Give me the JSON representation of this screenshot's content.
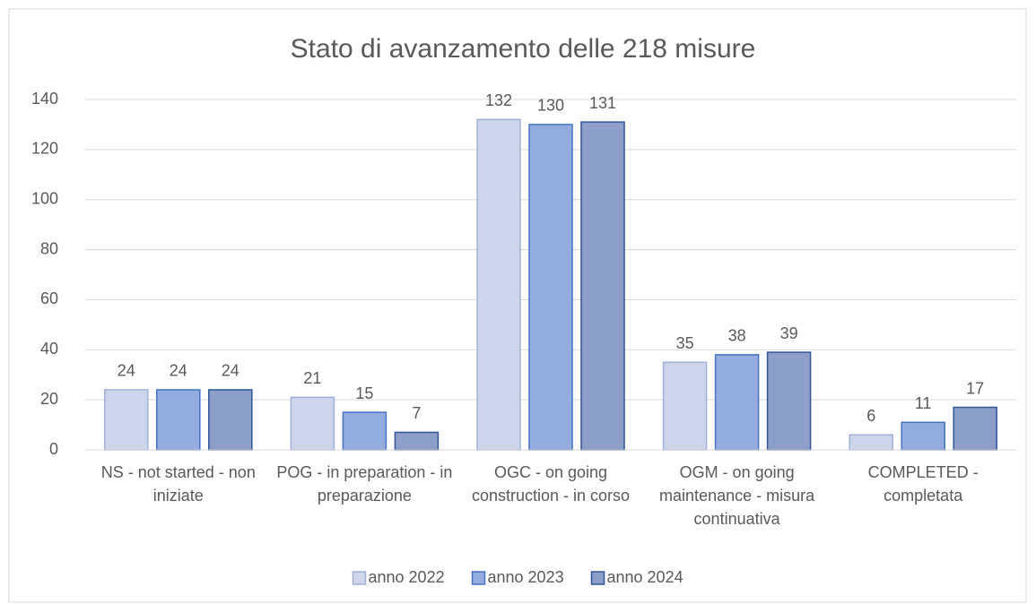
{
  "chart_data": {
    "type": "bar",
    "title": "Stato di avanzamento delle 218 misure",
    "categories": [
      "NS - not started - non iniziate",
      "POG - in preparation - in preparazione",
      "OGC - on going construction - in corso",
      "OGM - on going maintenance - misura continuativa",
      "COMPLETED - completata"
    ],
    "series": [
      {
        "name": "anno 2022",
        "color": "#cdd5ea",
        "stroke": "#9fb0d8",
        "values": [
          24,
          21,
          132,
          35,
          6
        ]
      },
      {
        "name": "anno 2023",
        "color": "#95acdf",
        "stroke": "#4472c4",
        "values": [
          24,
          15,
          130,
          38,
          11
        ]
      },
      {
        "name": "anno 2024",
        "color": "#8d9fc8",
        "stroke": "#2f5597",
        "values": [
          24,
          7,
          131,
          39,
          17
        ]
      }
    ],
    "ylim": [
      0,
      140
    ],
    "yticks": [
      0,
      20,
      40,
      60,
      80,
      100,
      120,
      140
    ],
    "grid": true,
    "legend": "bottom"
  }
}
